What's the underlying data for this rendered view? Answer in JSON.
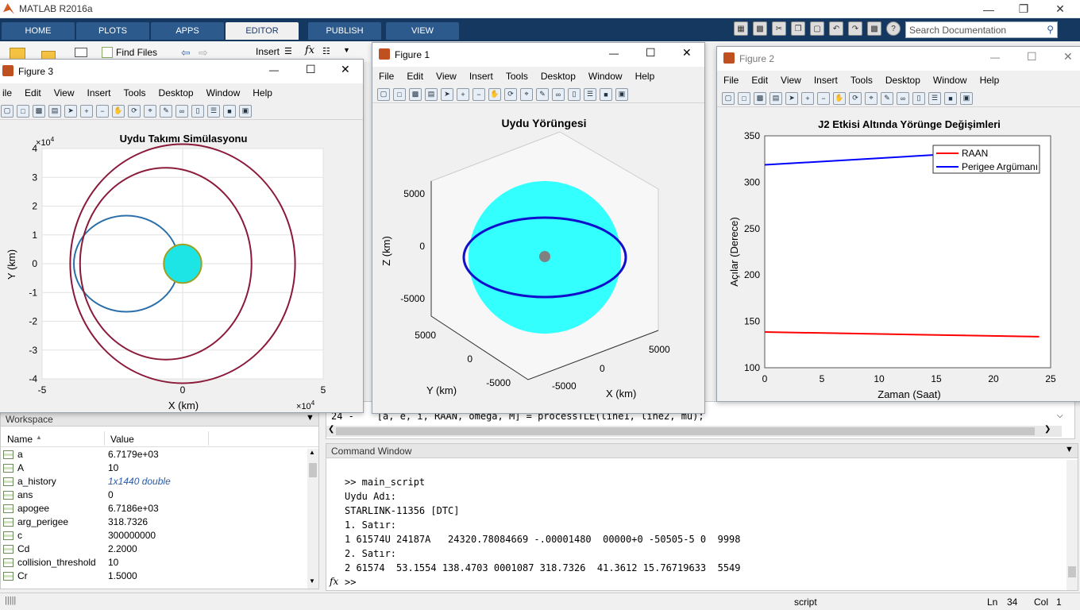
{
  "app": {
    "title": "MATLAB R2016a"
  },
  "ribbon": {
    "tabs": [
      "HOME",
      "PLOTS",
      "APPS",
      "EDITOR",
      "PUBLISH",
      "VIEW"
    ],
    "active_tab": "EDITOR",
    "find_files": "Find Files",
    "insert": "Insert",
    "search_placeholder": "Search Documentation"
  },
  "figure_menu": [
    "File",
    "Edit",
    "View",
    "Insert",
    "Tools",
    "Desktop",
    "Window",
    "Help"
  ],
  "figure3": {
    "title": "Figure 3",
    "menu_first": "ile",
    "chart_title": "Uydu Takımı Simülasyonu",
    "xlabel": "X (km)",
    "ylabel": "Y (km)",
    "exponent": "10",
    "exp_pow": "4",
    "xticks": [
      "-5",
      "0",
      "5"
    ],
    "yticks": [
      "4",
      "3",
      "2",
      "1",
      "0",
      "-1",
      "-2",
      "-3",
      "-4"
    ]
  },
  "figure1": {
    "title": "Figure 1",
    "chart_title": "Uydu Yörüngesi",
    "zlabel": "Z (km)",
    "ylabel": "Y (km)",
    "xlabel": "X (km)",
    "zticks": [
      "5000",
      "0",
      "-5000"
    ],
    "yticks": [
      "5000",
      "0",
      "-5000"
    ],
    "xticks": [
      "5000",
      "0",
      "-5000"
    ]
  },
  "figure2": {
    "title": "Figure 2",
    "chart_title": "J2 Etkisi Altında Yörünge Değişimleri",
    "xlabel": "Zaman (Saat)",
    "ylabel": "Açılar (Derece)",
    "xticks": [
      "0",
      "5",
      "10",
      "15",
      "20",
      "25"
    ],
    "yticks": [
      "350",
      "300",
      "250",
      "200",
      "150",
      "100"
    ],
    "legend": [
      "RAAN",
      "Perigee Argümanı"
    ]
  },
  "chart_data": [
    {
      "type": "line",
      "title": "Uydu Takımı Simülasyonu",
      "xlabel": "X (km)",
      "ylabel": "Y (km)",
      "xlim": [
        -50000,
        50000
      ],
      "ylim": [
        -40000,
        40000
      ],
      "grid": true,
      "series": [
        {
          "shape": "ellipse",
          "cx": -20000,
          "cy": 0,
          "rx": 18700,
          "ry": 16700,
          "color": "#2a6faa"
        },
        {
          "shape": "ellipse",
          "cx": -6000,
          "cy": 0,
          "rx": 30500,
          "ry": 33300,
          "color": "#8b1a3a"
        },
        {
          "shape": "ellipse",
          "cx": 0,
          "cy": 0,
          "rx": 40000,
          "ry": 41500,
          "color": "#8b1a3a"
        },
        {
          "shape": "circle",
          "cx": 0,
          "cy": 0,
          "r": 6700,
          "color": "#1ee5e5"
        }
      ]
    },
    {
      "type": "scatter",
      "title": "Uydu Yörüngesi",
      "xlabel": "X (km)",
      "ylabel": "Y (km)",
      "zlabel": "Z (km)",
      "note3d": true
    },
    {
      "type": "line",
      "title": "J2 Etkisi Altında Yörünge Değişimleri",
      "xlabel": "Zaman (Saat)",
      "ylabel": "Açılar (Derece)",
      "xlim": [
        0,
        25
      ],
      "ylim": [
        100,
        350
      ],
      "legend_position": "top-right",
      "series": [
        {
          "name": "RAAN",
          "color": "#ff0000",
          "x": [
            0,
            24
          ],
          "y": [
            138.5,
            133.5
          ]
        },
        {
          "name": "Perigee Argümanı",
          "color": "#0000ff",
          "x": [
            0,
            24
          ],
          "y": [
            318.7,
            336
          ]
        }
      ]
    }
  ],
  "editor": {
    "line_text": "24 -    [a, e, i, RAAN, omega, M] = processTLE(line1, line2, mu);"
  },
  "workspace": {
    "title": "Workspace",
    "col_name": "Name",
    "col_value": "Value",
    "rows": [
      {
        "name": "a",
        "value": "6.7179e+03"
      },
      {
        "name": "A",
        "value": "10"
      },
      {
        "name": "a_history",
        "value": "1x1440 double"
      },
      {
        "name": "ans",
        "value": "0"
      },
      {
        "name": "apogee",
        "value": "6.7186e+03"
      },
      {
        "name": "arg_perigee",
        "value": "318.7326"
      },
      {
        "name": "c",
        "value": "300000000"
      },
      {
        "name": "Cd",
        "value": "2.2000"
      },
      {
        "name": "collision_threshold",
        "value": "10"
      },
      {
        "name": "Cr",
        "value": "1.5000"
      }
    ]
  },
  "command_window": {
    "title": "Command Window",
    "lines": [
      ">> main_script",
      "Uydu Adı:",
      "STARLINK-11356 [DTC]",
      "1. Satır:",
      "1 61574U 24187A   24320.78084669 -.00001480  00000+0 -50505-5 0  9998",
      "2. Satır:",
      "2 61574  53.1554 138.4703 0001087 318.7326  41.3612 15.76719633  5549"
    ],
    "prompt": ">>",
    "fx": "fx"
  },
  "status": {
    "script": "script",
    "ln_label": "Ln",
    "ln": "34",
    "col_label": "Col",
    "col": "1"
  }
}
